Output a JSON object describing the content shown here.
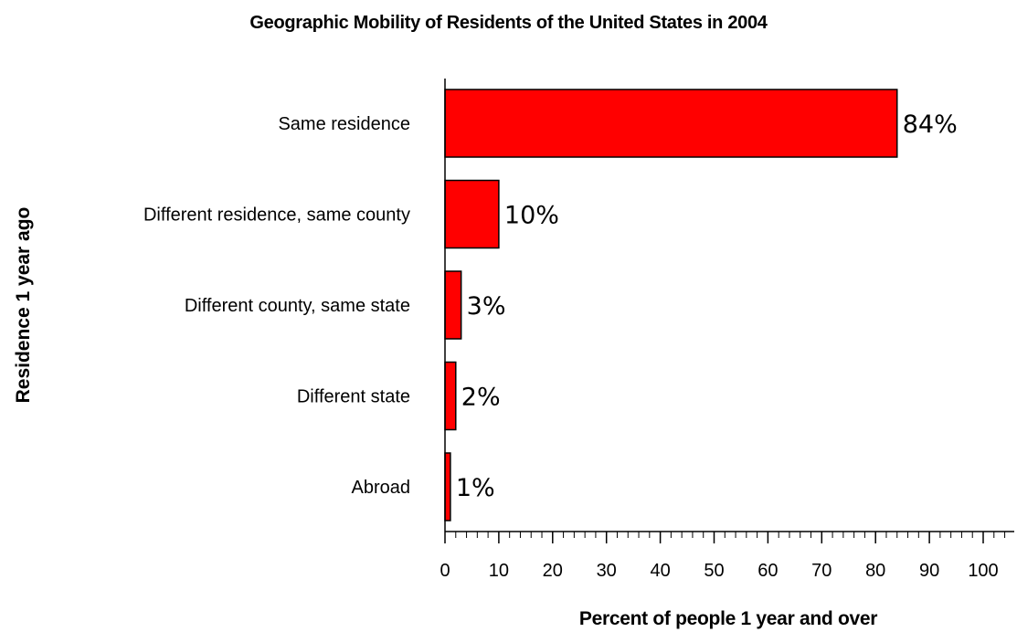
{
  "chart_data": {
    "type": "bar",
    "orientation": "horizontal",
    "title": "Geographic Mobility of Residents of the United States in 2004",
    "xlabel": "Percent of people 1 year and over",
    "ylabel": "Residence 1 year ago",
    "categories": [
      "Same residence",
      "Different residence, same county",
      "Different county, same state",
      "Different state",
      "Abroad"
    ],
    "values": [
      84,
      10,
      3,
      2,
      1
    ],
    "data_labels": [
      "84%",
      "10%",
      "3%",
      "2%",
      "1%"
    ],
    "xlim": [
      0,
      100
    ],
    "xticks": [
      "0",
      "10",
      "20",
      "30",
      "40",
      "50",
      "60",
      "70",
      "80",
      "90",
      "100"
    ],
    "grid": false,
    "legend": "none",
    "bar_color": "#ff0000"
  }
}
